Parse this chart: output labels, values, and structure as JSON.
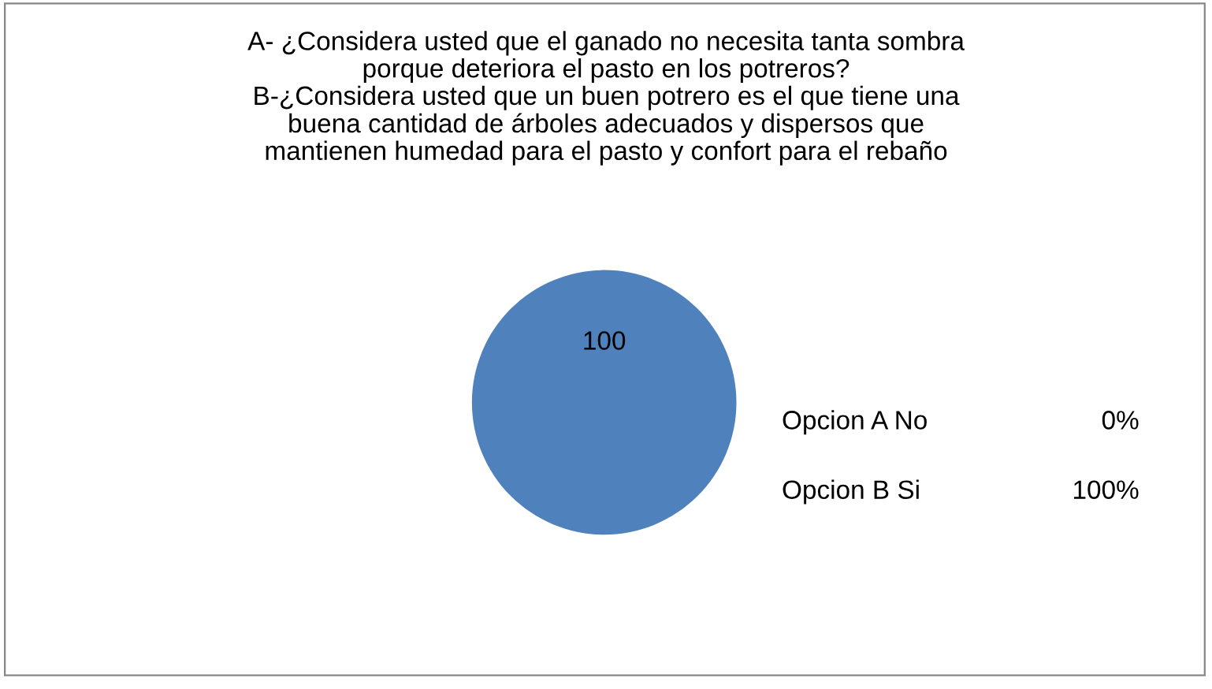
{
  "chart_data": {
    "type": "pie",
    "title": "A- ¿Considera usted que el ganado no necesita tanta sombra\nporque deteriora el pasto en los potreros?\nB-¿Considera usted que un buen potrero es el que tiene una\nbuena cantidad de árboles adecuados y dispersos que\nmantienen humedad para el pasto y confort para el rebaño",
    "categories": [
      "Opcion A No",
      "Opcion B Si"
    ],
    "values": [
      0,
      100
    ],
    "colors": [
      "#c0504d",
      "#4f81bd"
    ],
    "value_labels": [
      null,
      "100"
    ],
    "annotations": [
      "0%",
      "100%"
    ]
  }
}
